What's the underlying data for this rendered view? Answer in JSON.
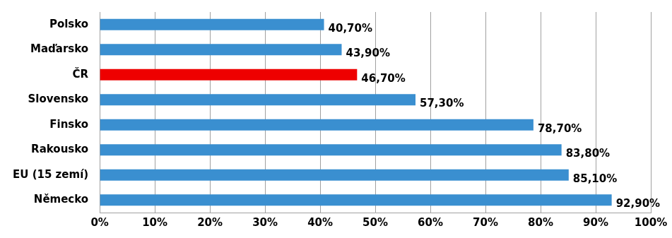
{
  "chart_data": {
    "type": "bar",
    "orientation": "horizontal",
    "categories": [
      "Polsko",
      "Maďarsko",
      "ČR",
      "Slovensko",
      "Finsko",
      "Rakousko",
      "EU (15 zemí)",
      "Německo"
    ],
    "values": [
      40.7,
      43.9,
      46.7,
      57.3,
      78.7,
      83.8,
      85.1,
      92.9
    ],
    "value_labels": [
      "40,70%",
      "43,90%",
      "46,70%",
      "57,30%",
      "78,70%",
      "83,80%",
      "85,10%",
      "92,90%"
    ],
    "colors": [
      "#3a8fd0",
      "#3a8fd0",
      "#ee0000",
      "#3a8fd0",
      "#3a8fd0",
      "#3a8fd0",
      "#3a8fd0",
      "#3a8fd0"
    ],
    "xlim": [
      0,
      100
    ],
    "xticks": [
      {
        "value": 0,
        "label": "0%"
      },
      {
        "value": 10,
        "label": "10%"
      },
      {
        "value": 20,
        "label": "20%"
      },
      {
        "value": 30,
        "label": "30%"
      },
      {
        "value": 40,
        "label": "40%"
      },
      {
        "value": 50,
        "label": "50%"
      },
      {
        "value": 60,
        "label": "60%"
      },
      {
        "value": 70,
        "label": "70%"
      },
      {
        "value": 80,
        "label": "80%"
      },
      {
        "value": 90,
        "label": "90%"
      },
      {
        "value": 100,
        "label": "100%"
      }
    ],
    "grid": true,
    "data_labels": true
  }
}
